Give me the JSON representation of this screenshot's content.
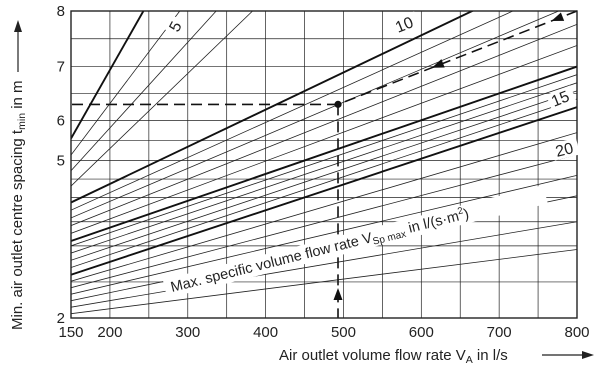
{
  "chart_data": {
    "type": "line",
    "title": "",
    "xlabel_main": "Air outlet volume flow rate V",
    "xlabel_sub": "A",
    "xlabel_tail": " in l/s",
    "ylabel_main": "Min. air outlet centre spacing t",
    "ylabel_sub": "min",
    "ylabel_tail": " in m",
    "curve_label_main": "Max. specific volume flow rate V",
    "curve_label_sub": "Sp max",
    "curve_label_tail": " in  l/(s·m",
    "curve_label_sup": "2",
    "curve_label_close": ")",
    "xlim": [
      150,
      800
    ],
    "x_ticks": [
      150,
      200,
      300,
      400,
      500,
      600,
      700,
      800
    ],
    "y_labeled_ticks": [
      2,
      5,
      6,
      7,
      8
    ],
    "y_positions": [
      {
        "v": 2,
        "f": 0.0
      },
      {
        "v": 3,
        "f": 0.235
      },
      {
        "v": 4,
        "f": 0.392
      },
      {
        "v": 5,
        "f": 0.513
      },
      {
        "v": 6,
        "f": 0.643
      },
      {
        "v": 7,
        "f": 0.819
      },
      {
        "v": 8,
        "f": 1.0
      }
    ],
    "series": [
      {
        "name": "5",
        "x": [
          150,
          243
        ],
        "y": [
          5.55,
          8.0
        ],
        "bold": true
      },
      {
        "name": "10",
        "x": [
          150,
          800
        ],
        "y": [
          3.9,
          8.9
        ],
        "bold": true
      },
      {
        "name": "15",
        "x": [
          150,
          800
        ],
        "y": [
          3.1,
          7.0
        ],
        "bold": true
      },
      {
        "name": "20",
        "x": [
          150,
          800
        ],
        "y": [
          2.6,
          6.25
        ],
        "bold": true
      }
    ],
    "example_path": {
      "x": [
        800,
        493,
        493,
        150
      ],
      "y": [
        8.0,
        6.3,
        6.3,
        6.3
      ],
      "drop_to_x": 493
    }
  }
}
